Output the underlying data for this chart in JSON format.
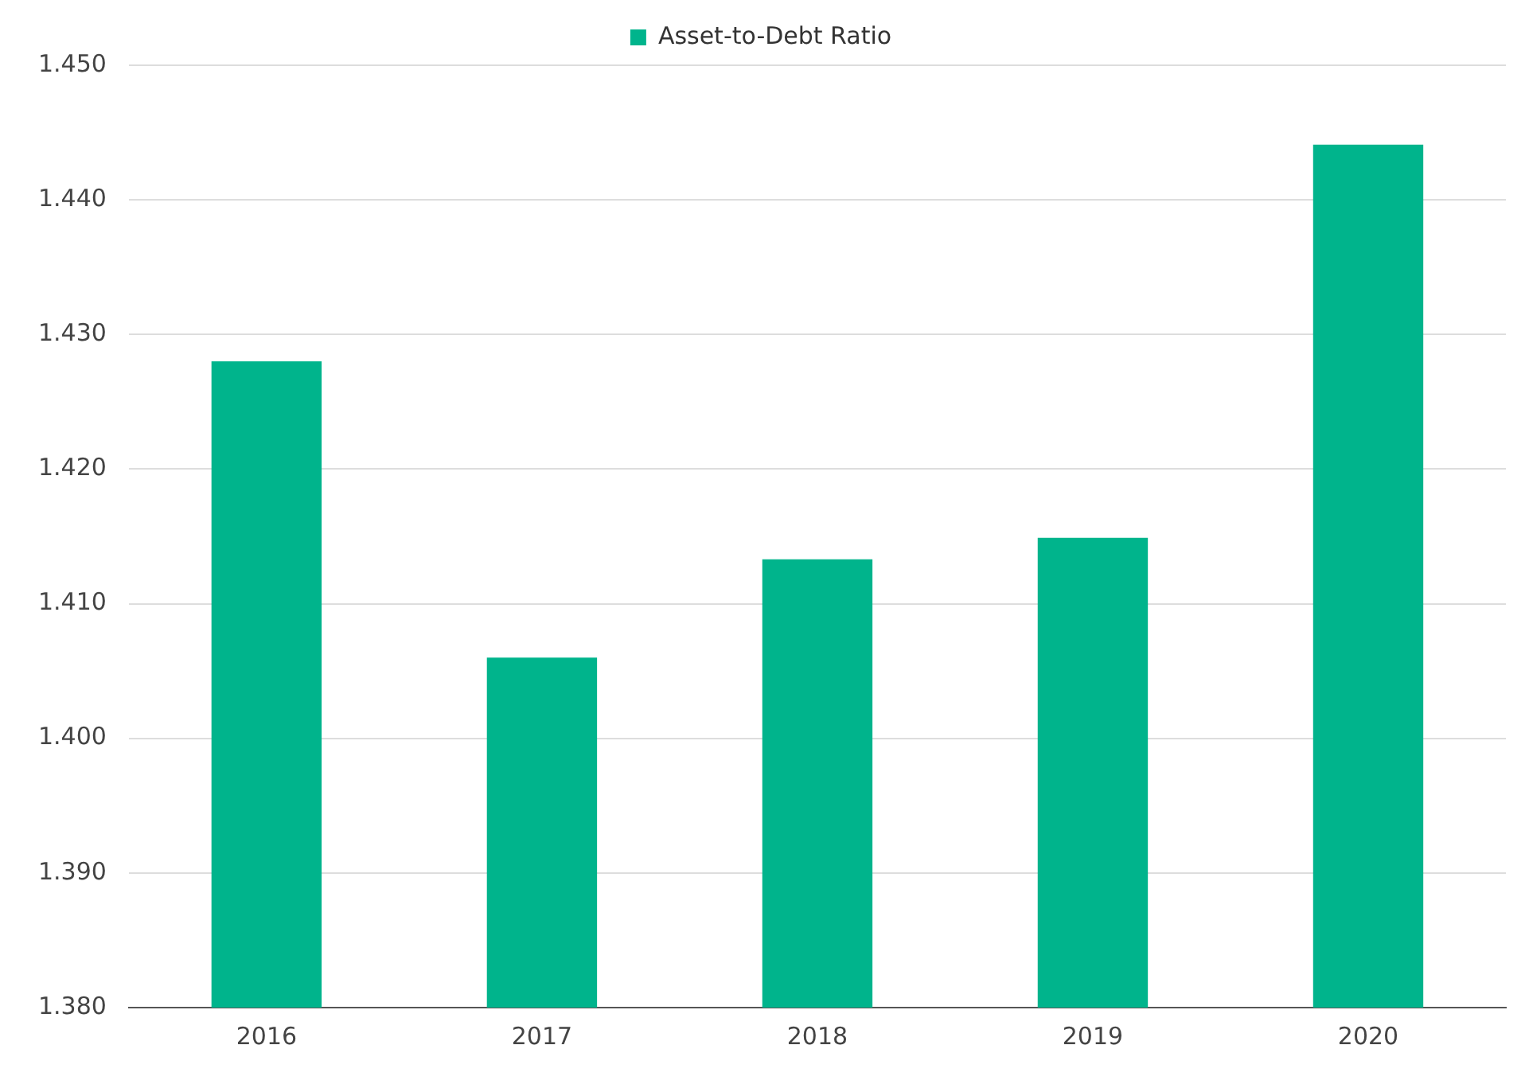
{
  "chart_data": {
    "type": "bar",
    "categories": [
      "2016",
      "2017",
      "2018",
      "2019",
      "2020"
    ],
    "series": [
      {
        "name": "Asset-to-Debt Ratio",
        "color": "#00b48c",
        "values": [
          1.428,
          1.406,
          1.4133,
          1.4149,
          1.4441
        ]
      }
    ],
    "ylim": [
      1.38,
      1.45
    ],
    "yticks": [
      {
        "value": 1.38,
        "label": "1.380"
      },
      {
        "value": 1.39,
        "label": "1.390"
      },
      {
        "value": 1.4,
        "label": "1.400"
      },
      {
        "value": 1.41,
        "label": "1.410"
      },
      {
        "value": 1.42,
        "label": "1.420"
      },
      {
        "value": 1.43,
        "label": "1.430"
      },
      {
        "value": 1.44,
        "label": "1.440"
      },
      {
        "value": 1.45,
        "label": "1.450"
      }
    ],
    "grid": "y",
    "legend": "top"
  }
}
